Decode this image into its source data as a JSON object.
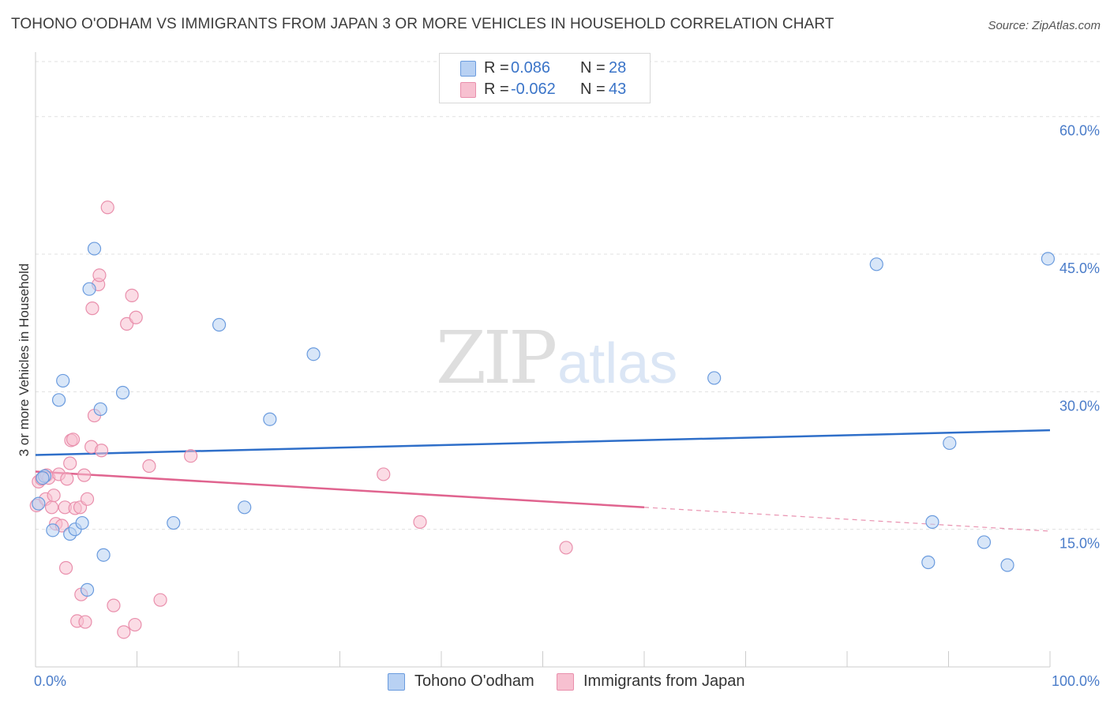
{
  "title": "TOHONO O'ODHAM VS IMMIGRANTS FROM JAPAN 3 OR MORE VEHICLES IN HOUSEHOLD CORRELATION CHART",
  "source": "Source: ZipAtlas.com",
  "watermark": {
    "zip": "ZIP",
    "atlas": "atlas"
  },
  "colors": {
    "blue_fill": "#b8d1f3",
    "blue_stroke": "#6a9bde",
    "blue_line": "#2f6fc9",
    "pink_fill": "#f7c0d0",
    "pink_stroke": "#e98fac",
    "pink_line": "#e0648f",
    "grid": "#e0e0e0",
    "tick_text": "#4a7cc9"
  },
  "legend": {
    "series1": {
      "r_label": "R =",
      "r_value": "0.086",
      "n_label": "N =",
      "n_value": "28"
    },
    "series2": {
      "r_label": "R =",
      "r_value": "-0.062",
      "n_label": "N =",
      "n_value": "43"
    }
  },
  "chart_data": {
    "type": "scatter",
    "title": "TOHONO O'ODHAM VS IMMIGRANTS FROM JAPAN 3 OR MORE VEHICLES IN HOUSEHOLD CORRELATION CHART",
    "xlabel": "",
    "ylabel": "3 or more Vehicles in Household",
    "xlim": [
      0,
      100
    ],
    "ylim": [
      0,
      66
    ],
    "x_tick_labels": [
      "0.0%",
      "100.0%"
    ],
    "y_ticks": [
      {
        "value": 15,
        "label": "15.0%"
      },
      {
        "value": 30,
        "label": "30.0%"
      },
      {
        "value": 45,
        "label": "45.0%"
      },
      {
        "value": 60,
        "label": "60.0%"
      }
    ],
    "series": [
      {
        "name": "Tohono O'odham",
        "color": "blue",
        "trend": {
          "x0": 0,
          "y0": 23.1,
          "x1": 100,
          "y1": 25.8
        },
        "points": [
          [
            0.3,
            17.8
          ],
          [
            0.9,
            20.8
          ],
          [
            1.7,
            14.9
          ],
          [
            2.3,
            29.1
          ],
          [
            2.7,
            31.2
          ],
          [
            3.4,
            14.5
          ],
          [
            3.9,
            15.0
          ],
          [
            4.6,
            15.7
          ],
          [
            5.1,
            8.4
          ],
          [
            5.3,
            41.2
          ],
          [
            5.8,
            45.6
          ],
          [
            6.4,
            28.1
          ],
          [
            6.7,
            12.2
          ],
          [
            8.6,
            29.9
          ],
          [
            13.6,
            15.7
          ],
          [
            18.1,
            37.3
          ],
          [
            20.6,
            17.4
          ],
          [
            23.1,
            27.0
          ],
          [
            27.4,
            34.1
          ],
          [
            66.9,
            31.5
          ],
          [
            82.9,
            43.9
          ],
          [
            88.4,
            15.8
          ],
          [
            93.5,
            13.6
          ],
          [
            95.8,
            11.1
          ],
          [
            99.8,
            44.5
          ],
          [
            88.0,
            11.4
          ],
          [
            90.1,
            24.4
          ],
          [
            0.7,
            20.6
          ]
        ]
      },
      {
        "name": "Immigrants from Japan",
        "color": "pink",
        "trend": {
          "x0": 0,
          "y0": 21.3,
          "x1": 60,
          "y1": 17.4,
          "dash_x1": 100,
          "dash_y1": 14.8
        },
        "points": [
          [
            0.1,
            17.6
          ],
          [
            0.3,
            20.2
          ],
          [
            0.6,
            20.5
          ],
          [
            1.0,
            18.3
          ],
          [
            1.1,
            20.9
          ],
          [
            1.3,
            20.6
          ],
          [
            1.6,
            17.4
          ],
          [
            1.8,
            18.7
          ],
          [
            2.0,
            15.6
          ],
          [
            2.3,
            21.0
          ],
          [
            2.6,
            15.4
          ],
          [
            2.9,
            17.4
          ],
          [
            3.1,
            20.5
          ],
          [
            3.0,
            10.8
          ],
          [
            3.4,
            22.2
          ],
          [
            3.5,
            24.7
          ],
          [
            3.7,
            24.8
          ],
          [
            3.9,
            17.3
          ],
          [
            4.1,
            5.0
          ],
          [
            4.4,
            17.4
          ],
          [
            4.5,
            7.9
          ],
          [
            4.8,
            20.9
          ],
          [
            4.9,
            4.9
          ],
          [
            5.1,
            18.3
          ],
          [
            5.5,
            24.0
          ],
          [
            5.6,
            39.1
          ],
          [
            5.8,
            27.4
          ],
          [
            6.2,
            41.7
          ],
          [
            6.3,
            42.7
          ],
          [
            6.5,
            23.6
          ],
          [
            7.1,
            50.1
          ],
          [
            7.7,
            6.7
          ],
          [
            8.7,
            3.8
          ],
          [
            9.0,
            37.4
          ],
          [
            9.5,
            40.5
          ],
          [
            9.8,
            4.6
          ],
          [
            9.9,
            38.1
          ],
          [
            11.2,
            21.9
          ],
          [
            12.3,
            7.3
          ],
          [
            15.3,
            23.0
          ],
          [
            34.3,
            21.0
          ],
          [
            37.9,
            15.8
          ],
          [
            52.3,
            13.0
          ]
        ]
      }
    ]
  }
}
